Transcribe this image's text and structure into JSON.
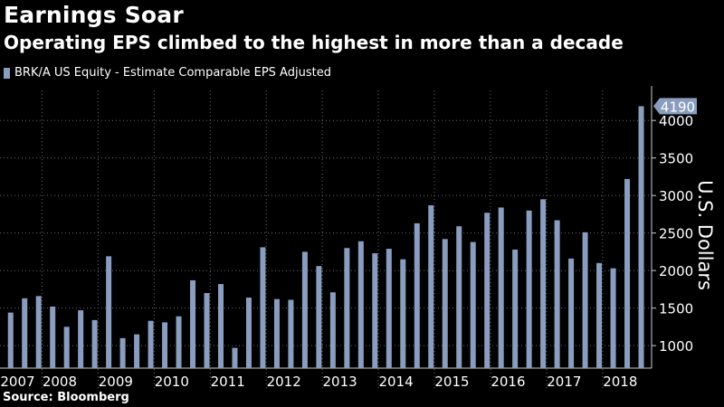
{
  "header": {
    "title": "Earnings Soar",
    "subtitle": "Operating EPS climbed to the highest in more than a decade"
  },
  "source": "Source: Bloomberg",
  "colors": {
    "bar": "#8a9dbf",
    "grid": "#6a6a6a",
    "background": "#000000",
    "callout": "#8a9dbf"
  },
  "chart_data": {
    "type": "bar",
    "title": "Earnings Soar",
    "subtitle": "Operating EPS climbed to the highest in more than a decade",
    "ylabel": "U.S. Dollars",
    "ylim": [
      700,
      4400
    ],
    "yticks": [
      1000,
      1500,
      2000,
      2500,
      3000,
      3500,
      4000
    ],
    "legend": "top-left",
    "grid": true,
    "series": [
      {
        "name": "BRK/A US Equity - Estimate Comparable EPS Adjusted",
        "values": [
          1440,
          1630,
          1660,
          1520,
          1250,
          1470,
          1340,
          2190,
          1100,
          1150,
          1330,
          1310,
          1390,
          1870,
          1700,
          1820,
          970,
          1640,
          2310,
          1620,
          1610,
          2250,
          2060,
          1710,
          2300,
          2390,
          2230,
          2290,
          2150,
          2630,
          2870,
          2420,
          2590,
          2380,
          2770,
          2840,
          2280,
          2800,
          2950,
          2670,
          2160,
          2510,
          2100,
          2030,
          3220,
          4190
        ]
      }
    ],
    "years": [
      "2007",
      "2008",
      "2009",
      "2010",
      "2011",
      "2012",
      "2013",
      "2014",
      "2015",
      "2016",
      "2017",
      "2018"
    ],
    "last_value_label": "4190"
  }
}
